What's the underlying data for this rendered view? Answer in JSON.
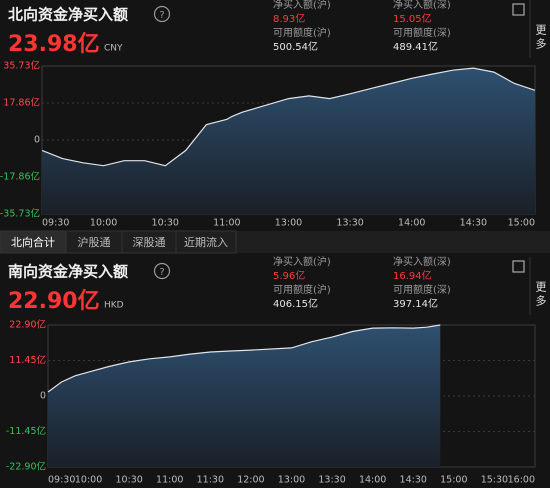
{
  "panels": [
    {
      "title": "北向资金净买入额",
      "net_buy": "23.98亿",
      "currency": "CNY",
      "stats": [
        {
          "label": "净买入额(沪)",
          "value": "8.93亿"
        },
        {
          "label": "净买入额(深)",
          "value": "15.05亿"
        },
        {
          "label": "可用额度(沪)",
          "value": "500.54亿"
        },
        {
          "label": "可用额度(深)",
          "value": "489.41亿"
        }
      ],
      "more": "更多"
    },
    {
      "title": "南向资金净买入额",
      "net_buy": "22.90亿",
      "currency": "HKD",
      "stats": [
        {
          "label": "净买入额(沪)",
          "value": "5.96亿"
        },
        {
          "label": "净买入额(深)",
          "value": "16.94亿"
        },
        {
          "label": "可用额度(沪)",
          "value": "406.15亿"
        },
        {
          "label": "可用额度(深)",
          "value": "397.14亿"
        }
      ],
      "more": "更多"
    }
  ],
  "tabs": [
    "北向合计",
    "沪股通",
    "深股通",
    "近期流入"
  ],
  "chart_data": [
    {
      "type": "line",
      "color": "#dfe4ea",
      "fill": "#2e5070",
      "grid": true,
      "x": [
        "09:30",
        "09:40",
        "09:50",
        "10:00",
        "10:10",
        "10:20",
        "10:30",
        "10:40",
        "10:50",
        "11:00",
        "11:10",
        "11:20",
        "11:30",
        "13:00",
        "13:10",
        "13:20",
        "13:30",
        "13:40",
        "13:50",
        "14:00",
        "14:10",
        "14:20",
        "14:30",
        "14:40",
        "14:50",
        "15:00"
      ],
      "values": [
        -5,
        -9,
        -11,
        -12.4,
        -10,
        -10,
        -12.4,
        -5,
        7.4,
        10,
        11.4,
        12.4,
        13.4,
        20,
        21.3,
        20,
        22.3,
        24.8,
        27.3,
        29.8,
        31.8,
        33.7,
        34.7,
        32.8,
        27.3,
        23.98
      ],
      "ylim": [
        -35.73,
        35.73
      ],
      "yticks": [
        {
          "value": 35.73,
          "label": "35.73亿"
        },
        {
          "value": 17.86,
          "label": "17.86亿"
        },
        0,
        {
          "value": -17.86,
          "label": "-17.86亿"
        },
        {
          "value": -35.73,
          "label": "-35.73亿"
        }
      ],
      "xticks": [
        "09:30",
        "10:00",
        "10:30",
        "11:00",
        "13:00",
        "13:30",
        "14:00",
        "14:30",
        "15:00"
      ]
    },
    {
      "type": "line",
      "color": "#dfe4ea",
      "fill": "#2e5070",
      "grid": true,
      "x": [
        "09:30",
        "09:40",
        "09:50",
        "10:00",
        "10:15",
        "10:30",
        "10:45",
        "11:00",
        "11:15",
        "11:30",
        "11:45",
        "12:00",
        "13:00",
        "13:15",
        "13:30",
        "13:45",
        "14:00",
        "14:15",
        "14:30",
        "14:40",
        "14:50"
      ],
      "values": [
        1.3,
        4.5,
        6.5,
        7.7,
        9.5,
        11,
        12,
        12.6,
        13.5,
        14.2,
        14.5,
        14.8,
        15.5,
        17.5,
        19,
        20.8,
        21.9,
        22,
        21.9,
        22.2,
        22.9
      ],
      "ylim": [
        -22.9,
        22.9
      ],
      "yticks": [
        {
          "value": 22.9,
          "label": "22.90亿"
        },
        {
          "value": 11.45,
          "label": "11.45亿"
        },
        0,
        {
          "value": -11.45,
          "label": "-11.45亿"
        },
        {
          "value": -22.9,
          "label": "-22.90亿"
        }
      ],
      "xticks": [
        "09:30",
        "10:00",
        "10:30",
        "11:00",
        "11:30",
        "12:00",
        "13:00",
        "13:30",
        "14:00",
        "14:30",
        "15:00",
        "15:30",
        "16:00"
      ]
    }
  ]
}
